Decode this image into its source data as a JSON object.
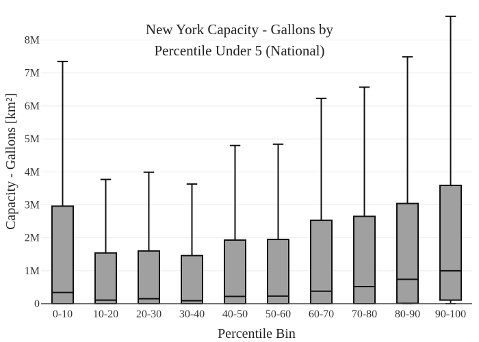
{
  "chart_data": {
    "type": "box",
    "title_lines": [
      "New York Capacity - Gallons by",
      "Percentile Under 5 (National)"
    ],
    "xlabel": "Percentile Bin",
    "ylabel": "Capacity - Gallons  [km²]",
    "ylim": [
      0,
      8800000
    ],
    "yticks": [
      {
        "value": 0,
        "label": "0"
      },
      {
        "value": 1000000,
        "label": "1M"
      },
      {
        "value": 2000000,
        "label": "2M"
      },
      {
        "value": 3000000,
        "label": "3M"
      },
      {
        "value": 4000000,
        "label": "4M"
      },
      {
        "value": 5000000,
        "label": "5M"
      },
      {
        "value": 6000000,
        "label": "6M"
      },
      {
        "value": 7000000,
        "label": "7M"
      },
      {
        "value": 8000000,
        "label": "8M"
      }
    ],
    "box_color": "#a0a0a0",
    "line_color": "#111111",
    "grid": true,
    "categories": [
      "0-10",
      "10-20",
      "20-30",
      "30-40",
      "40-50",
      "50-60",
      "60-70",
      "70-80",
      "80-90",
      "90-100"
    ],
    "boxes": [
      {
        "category": "0-10",
        "min": 0,
        "q1": 0,
        "median": 340000,
        "q3": 2960000,
        "max": 7350000
      },
      {
        "category": "10-20",
        "min": 0,
        "q1": 0,
        "median": 110000,
        "q3": 1540000,
        "max": 3770000
      },
      {
        "category": "20-30",
        "min": 0,
        "q1": 0,
        "median": 150000,
        "q3": 1600000,
        "max": 3990000
      },
      {
        "category": "30-40",
        "min": 0,
        "q1": 0,
        "median": 90000,
        "q3": 1460000,
        "max": 3630000
      },
      {
        "category": "40-50",
        "min": 0,
        "q1": 0,
        "median": 220000,
        "q3": 1930000,
        "max": 4800000
      },
      {
        "category": "50-60",
        "min": 0,
        "q1": 0,
        "median": 230000,
        "q3": 1950000,
        "max": 4840000
      },
      {
        "category": "60-70",
        "min": 0,
        "q1": 0,
        "median": 380000,
        "q3": 2530000,
        "max": 6230000
      },
      {
        "category": "70-80",
        "min": 0,
        "q1": 0,
        "median": 520000,
        "q3": 2650000,
        "max": 6570000
      },
      {
        "category": "80-90",
        "min": 0,
        "q1": 10000,
        "median": 740000,
        "q3": 3040000,
        "max": 7490000
      },
      {
        "category": "90-100",
        "min": 0,
        "q1": 110000,
        "median": 1000000,
        "q3": 3590000,
        "max": 8720000
      }
    ]
  }
}
